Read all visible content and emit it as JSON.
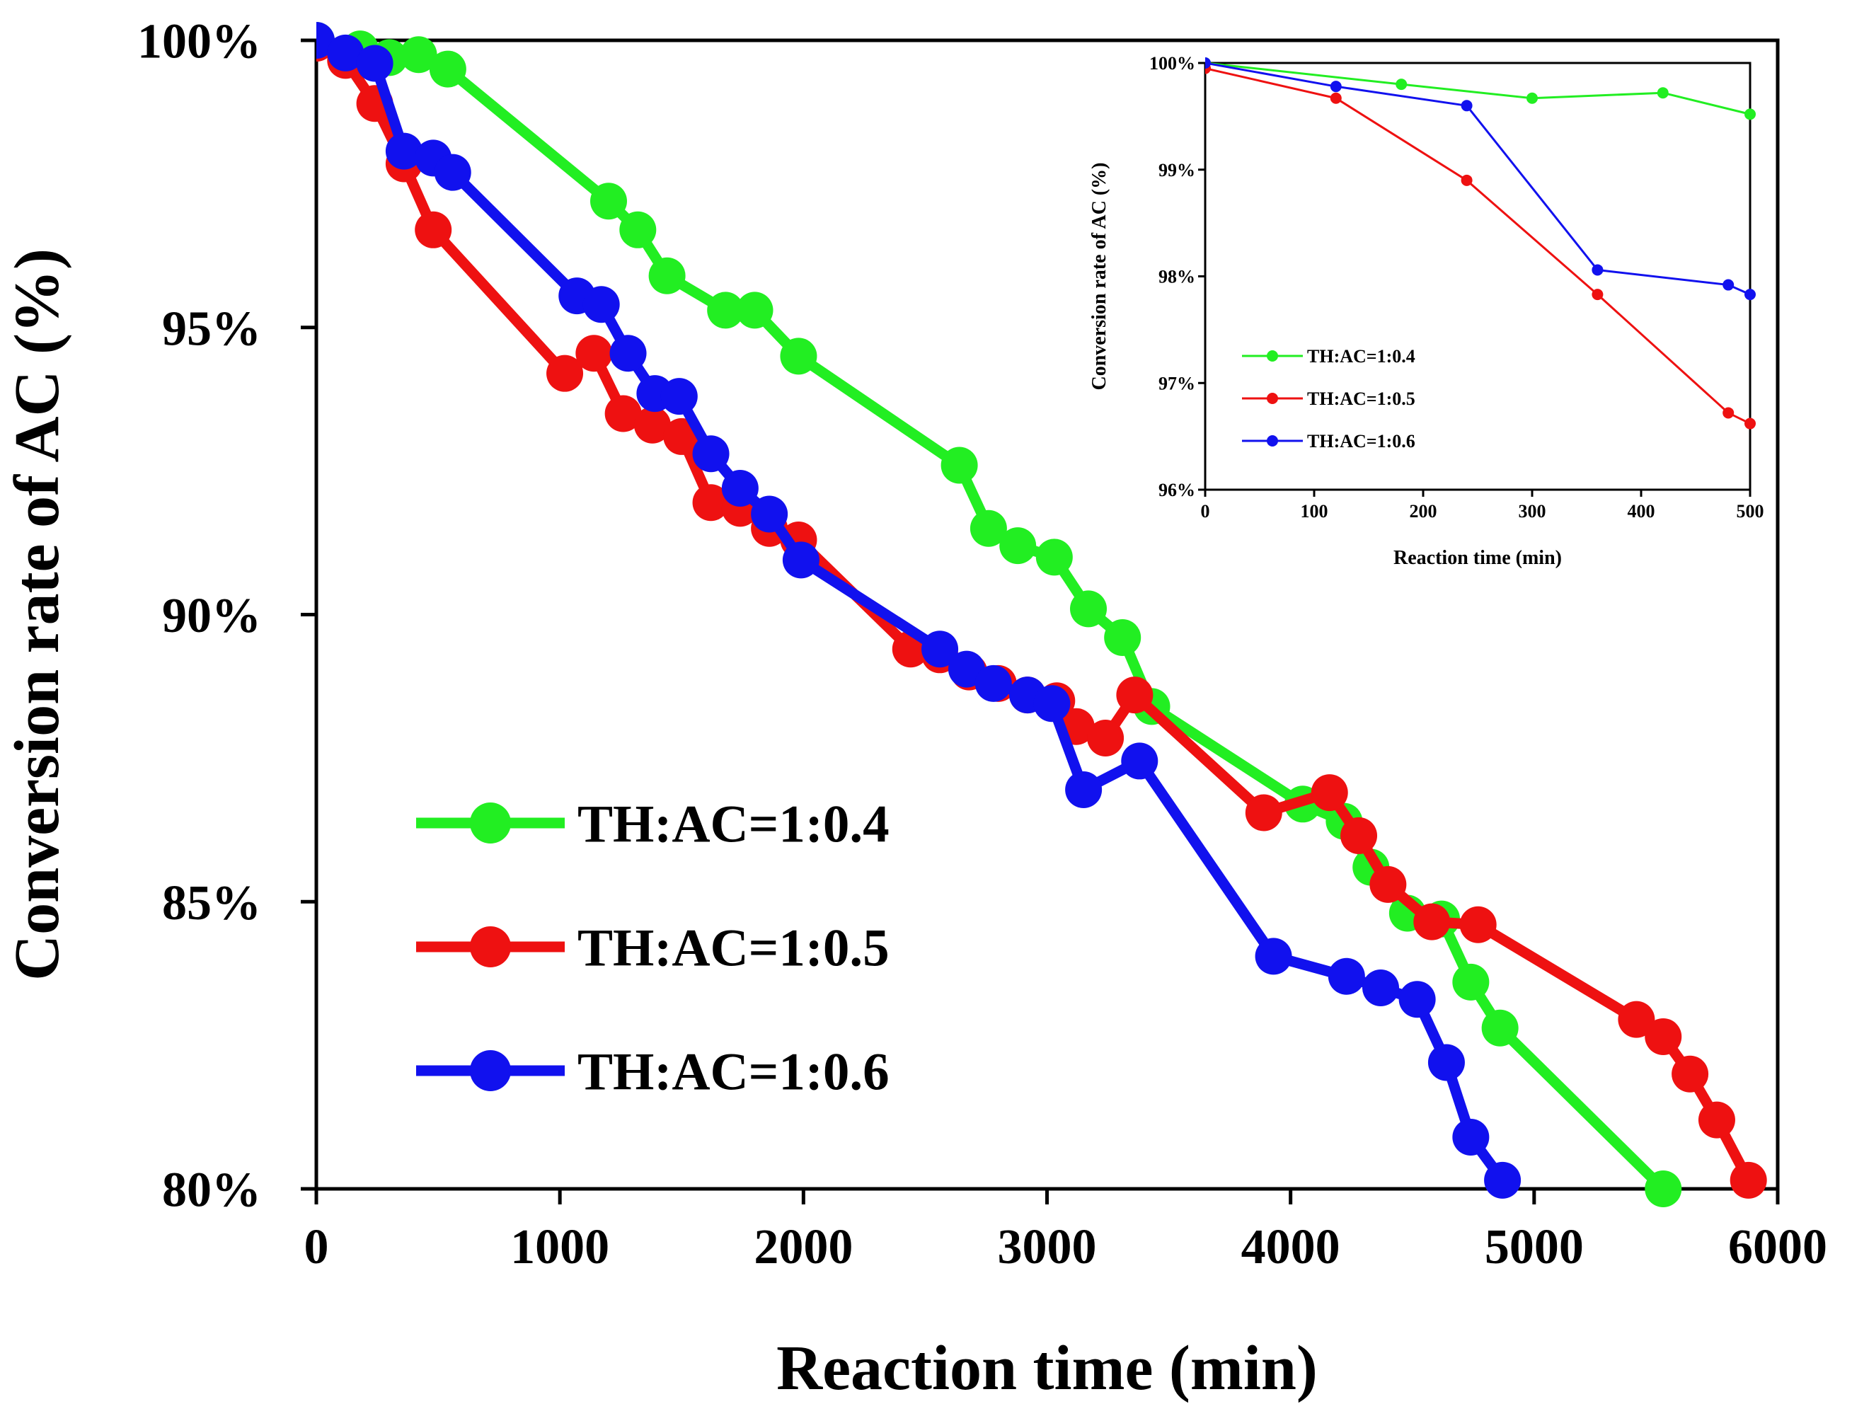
{
  "chart_data": [
    {
      "type": "line",
      "name": "main",
      "xlabel": "Reaction time (min)",
      "ylabel": "Conversion rate of AC (%)",
      "xlim": [
        0,
        6000
      ],
      "ylim": [
        80,
        100
      ],
      "x_ticks": [
        0,
        1000,
        2000,
        3000,
        4000,
        5000,
        6000
      ],
      "x_tick_labels": [
        "0",
        "1000",
        "2000",
        "3000",
        "4000",
        "5000",
        "6000"
      ],
      "y_ticks": [
        80,
        85,
        90,
        95,
        100
      ],
      "y_tick_labels": [
        "80%",
        "85%",
        "90%",
        "95%",
        "100%"
      ],
      "legend_position": "bottom-left",
      "series": [
        {
          "name": "TH:AC=1:0.4",
          "color": "#22ee22",
          "points": [
            [
              0,
              100
            ],
            [
              180,
              99.85
            ],
            [
              300,
              99.7
            ],
            [
              420,
              99.75
            ],
            [
              540,
              99.5
            ],
            [
              1200,
              97.2
            ],
            [
              1320,
              96.7
            ],
            [
              1440,
              95.9
            ],
            [
              1680,
              95.3
            ],
            [
              1800,
              95.3
            ],
            [
              1980,
              94.5
            ],
            [
              2640,
              92.6
            ],
            [
              2760,
              91.5
            ],
            [
              2880,
              91.2
            ],
            [
              3030,
              91.0
            ],
            [
              3170,
              90.1
            ],
            [
              3310,
              89.6
            ],
            [
              3430,
              88.4
            ],
            [
              4050,
              86.7
            ],
            [
              4220,
              86.4
            ],
            [
              4330,
              85.6
            ],
            [
              4480,
              84.8
            ],
            [
              4620,
              84.7
            ],
            [
              4740,
              83.6
            ],
            [
              4860,
              82.8
            ],
            [
              5530,
              80.0
            ]
          ]
        },
        {
          "name": "TH:AC=1:0.5",
          "color": "#ee1111",
          "points": [
            [
              0,
              99.95
            ],
            [
              120,
              99.65
            ],
            [
              240,
              98.9
            ],
            [
              360,
              97.85
            ],
            [
              480,
              96.7
            ],
            [
              1020,
              94.2
            ],
            [
              1140,
              94.55
            ],
            [
              1260,
              93.5
            ],
            [
              1380,
              93.3
            ],
            [
              1500,
              93.1
            ],
            [
              1620,
              91.95
            ],
            [
              1740,
              91.85
            ],
            [
              1860,
              91.5
            ],
            [
              1980,
              91.3
            ],
            [
              2440,
              89.4
            ],
            [
              2560,
              89.3
            ],
            [
              2680,
              89.0
            ],
            [
              2800,
              88.8
            ],
            [
              2920,
              88.6
            ],
            [
              3040,
              88.5
            ],
            [
              3120,
              88.05
            ],
            [
              3240,
              87.85
            ],
            [
              3360,
              88.6
            ],
            [
              3890,
              86.55
            ],
            [
              4160,
              86.9
            ],
            [
              4280,
              86.15
            ],
            [
              4400,
              85.3
            ],
            [
              4580,
              84.65
            ],
            [
              4770,
              84.6
            ],
            [
              5420,
              82.95
            ],
            [
              5530,
              82.65
            ],
            [
              5640,
              82.0
            ],
            [
              5750,
              81.2
            ],
            [
              5880,
              80.15
            ]
          ]
        },
        {
          "name": "TH:AC=1:0.6",
          "color": "#1111ee",
          "points": [
            [
              0,
              100
            ],
            [
              120,
              99.78
            ],
            [
              240,
              99.6
            ],
            [
              360,
              98.07
            ],
            [
              480,
              97.95
            ],
            [
              560,
              97.7
            ],
            [
              1070,
              95.55
            ],
            [
              1170,
              95.4
            ],
            [
              1280,
              94.55
            ],
            [
              1390,
              93.85
            ],
            [
              1490,
              93.8
            ],
            [
              1620,
              92.8
            ],
            [
              1740,
              92.2
            ],
            [
              1860,
              91.75
            ],
            [
              1990,
              90.95
            ],
            [
              2560,
              89.4
            ],
            [
              2670,
              89.05
            ],
            [
              2780,
              88.8
            ],
            [
              2920,
              88.6
            ],
            [
              3020,
              88.45
            ],
            [
              3150,
              86.95
            ],
            [
              3380,
              87.45
            ],
            [
              3930,
              84.05
            ],
            [
              4230,
              83.7
            ],
            [
              4370,
              83.5
            ],
            [
              4520,
              83.3
            ],
            [
              4640,
              82.2
            ],
            [
              4740,
              80.9
            ],
            [
              4870,
              80.15
            ]
          ]
        }
      ]
    },
    {
      "type": "line",
      "name": "inset",
      "xlabel": "Reaction time (min)",
      "ylabel": "Conversion rate of AC (%)",
      "xlim": [
        0,
        500
      ],
      "ylim": [
        96,
        100
      ],
      "x_ticks": [
        0,
        100,
        200,
        300,
        400,
        500
      ],
      "x_tick_labels": [
        "0",
        "100",
        "200",
        "300",
        "400",
        "500"
      ],
      "y_ticks": [
        96,
        97,
        98,
        99,
        100
      ],
      "y_tick_labels": [
        "96%",
        "97%",
        "98%",
        "99%",
        "100%"
      ],
      "legend_position": "bottom-left",
      "series": [
        {
          "name": "TH:AC=1:0.4",
          "color": "#22ee22",
          "points": [
            [
              0,
              100
            ],
            [
              180,
              99.8
            ],
            [
              300,
              99.67
            ],
            [
              420,
              99.72
            ],
            [
              500,
              99.52
            ]
          ]
        },
        {
          "name": "TH:AC=1:0.5",
          "color": "#ee1111",
          "points": [
            [
              0,
              99.95
            ],
            [
              120,
              99.67
            ],
            [
              240,
              98.9
            ],
            [
              360,
              97.83
            ],
            [
              480,
              96.72
            ],
            [
              500,
              96.62
            ]
          ]
        },
        {
          "name": "TH:AC=1:0.6",
          "color": "#1111ee",
          "points": [
            [
              0,
              100
            ],
            [
              120,
              99.78
            ],
            [
              240,
              99.6
            ],
            [
              360,
              98.06
            ],
            [
              480,
              97.92
            ],
            [
              500,
              97.83
            ]
          ]
        }
      ]
    }
  ]
}
